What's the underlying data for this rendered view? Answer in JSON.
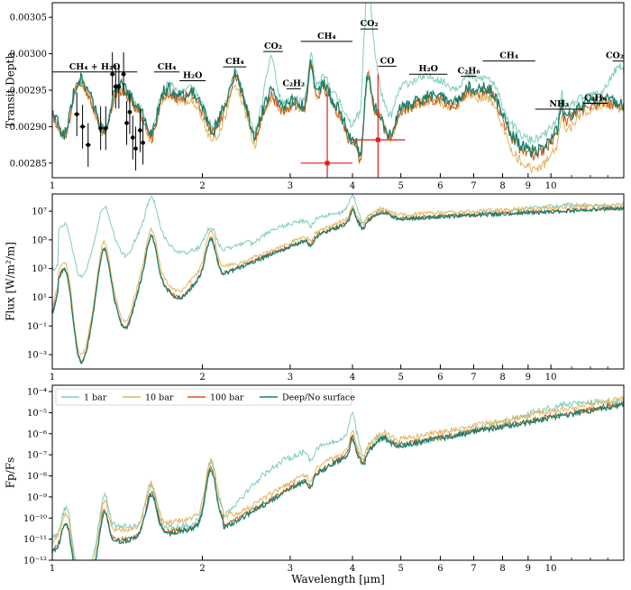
{
  "colors": {
    "s1": "#7fcdbb",
    "s10": "#e3b35c",
    "s100": "#c85a1a",
    "sdeep": "#1a7f6a",
    "obs": "#000000",
    "obs_red": "#e41a1c"
  },
  "chart_data": [
    {
      "type": "line",
      "panel": "top",
      "xlabel": "",
      "ylabel": "Transit Depth",
      "xscale": "log",
      "xlim": [
        1.0,
        14.0
      ],
      "ylim": [
        0.00283,
        0.00307
      ],
      "yticks": [
        "0.00285",
        "0.00290",
        "0.00295",
        "0.00300",
        "0.00305"
      ],
      "xticks": [
        "1",
        "2",
        "3",
        "4",
        "5",
        "6",
        "7",
        "8",
        "9",
        "10"
      ],
      "annotations": [
        {
          "label": "CH₄ + H₂O",
          "x1": 1.0,
          "x2": 1.48,
          "y": 0.002975
        },
        {
          "label": "CH₄",
          "x1": 1.6,
          "x2": 1.8,
          "y": 0.002975
        },
        {
          "label": "H₂O",
          "x1": 1.8,
          "x2": 2.03,
          "y": 0.002963
        },
        {
          "label": "CH₄",
          "x1": 2.2,
          "x2": 2.45,
          "y": 0.002982
        },
        {
          "label": "CO₂",
          "x1": 2.65,
          "x2": 2.9,
          "y": 0.003003
        },
        {
          "label": "C₂H₂",
          "x1": 2.95,
          "x2": 3.15,
          "y": 0.002952
        },
        {
          "label": "CH₄",
          "x1": 3.15,
          "x2": 4.0,
          "y": 0.003017
        },
        {
          "label": "CO₂",
          "x1": 4.15,
          "x2": 4.5,
          "y": 0.003034
        },
        {
          "label": "CO",
          "x1": 4.5,
          "x2": 4.9,
          "y": 0.002983
        },
        {
          "label": "H₂O",
          "x1": 5.2,
          "x2": 6.2,
          "y": 0.002972
        },
        {
          "label": "C₂H₆",
          "x1": 6.6,
          "x2": 7.1,
          "y": 0.002969
        },
        {
          "label": "CH₄",
          "x1": 7.3,
          "x2": 9.3,
          "y": 0.00299
        },
        {
          "label": "NH₃",
          "x1": 9.3,
          "x2": 11.6,
          "y": 0.002924
        },
        {
          "label": "C₂H₆",
          "x1": 11.6,
          "x2": 13.0,
          "y": 0.002932
        },
        {
          "label": "CO₂",
          "x1": 13.3,
          "x2": 14.0,
          "y": 0.00299
        }
      ],
      "observations": {
        "black": [
          {
            "x": 1.12,
            "y": 0.002917,
            "yerr": 3e-05,
            "xerr": 0.015
          },
          {
            "x": 1.15,
            "y": 0.0029,
            "yerr": 3e-05,
            "xerr": 0.015
          },
          {
            "x": 1.18,
            "y": 0.002875,
            "yerr": 3e-05,
            "xerr": 0.015
          },
          {
            "x": 1.25,
            "y": 0.002898,
            "yerr": 3e-05,
            "xerr": 0.015
          },
          {
            "x": 1.28,
            "y": 0.002898,
            "yerr": 3e-05,
            "xerr": 0.015
          },
          {
            "x": 1.32,
            "y": 0.002972,
            "yerr": 3e-05,
            "xerr": 0.015
          },
          {
            "x": 1.34,
            "y": 0.002955,
            "yerr": 3e-05,
            "xerr": 0.015
          },
          {
            "x": 1.36,
            "y": 0.002955,
            "yerr": 3e-05,
            "xerr": 0.015
          },
          {
            "x": 1.39,
            "y": 0.002972,
            "yerr": 3e-05,
            "xerr": 0.015
          },
          {
            "x": 1.41,
            "y": 0.002905,
            "yerr": 3e-05,
            "xerr": 0.015
          },
          {
            "x": 1.43,
            "y": 0.00292,
            "yerr": 3e-05,
            "xerr": 0.015
          },
          {
            "x": 1.45,
            "y": 0.002885,
            "yerr": 3e-05,
            "xerr": 0.015
          },
          {
            "x": 1.47,
            "y": 0.00287,
            "yerr": 3e-05,
            "xerr": 0.015
          },
          {
            "x": 1.5,
            "y": 0.002895,
            "yerr": 3e-05,
            "xerr": 0.015
          },
          {
            "x": 1.52,
            "y": 0.002878,
            "yerr": 3e-05,
            "xerr": 0.015
          }
        ],
        "red": [
          {
            "x": 3.56,
            "y": 0.00285,
            "yerr": 9.5e-05,
            "x1": 3.15,
            "x2": 4.0
          },
          {
            "x": 4.5,
            "y": 0.002882,
            "yerr": 9e-05,
            "x1": 4.0,
            "x2": 5.1
          }
        ]
      }
    },
    {
      "type": "line",
      "panel": "middle",
      "xlabel": "",
      "ylabel": "Flux [W/m²/m]",
      "xscale": "log",
      "yscale": "log",
      "xlim": [
        1.0,
        14.0
      ],
      "ylim_log10": [
        -4.0,
        8.2
      ],
      "yticks": [
        "10⁻³",
        "10⁻¹",
        "10¹",
        "10³",
        "10⁵",
        "10⁷"
      ],
      "xticks": [
        "1",
        "2",
        "3",
        "4",
        "5",
        "6",
        "7",
        "8",
        "9",
        "10"
      ]
    },
    {
      "type": "line",
      "panel": "bottom",
      "xlabel": "Wavelength [μm]",
      "ylabel": "Fp/Fs",
      "xscale": "log",
      "yscale": "log",
      "xlim": [
        1.0,
        14.0
      ],
      "ylim_log10": [
        -12.0,
        -3.7
      ],
      "yticks": [
        "10⁻¹²",
        "10⁻¹¹",
        "10⁻¹⁰",
        "10⁻⁹",
        "10⁻⁸",
        "10⁻⁷",
        "10⁻⁶",
        "10⁻⁵",
        "10⁻⁴"
      ],
      "xticks": [
        "1",
        "2",
        "3",
        "4",
        "5",
        "6",
        "7",
        "8",
        "9",
        "10"
      ],
      "legend": {
        "placement": "top-left",
        "entries": [
          "1 bar",
          "10 bar",
          "100 bar",
          "Deep/No surface"
        ]
      }
    }
  ],
  "series_keys": [
    "s1",
    "s10",
    "s100",
    "sdeep"
  ]
}
